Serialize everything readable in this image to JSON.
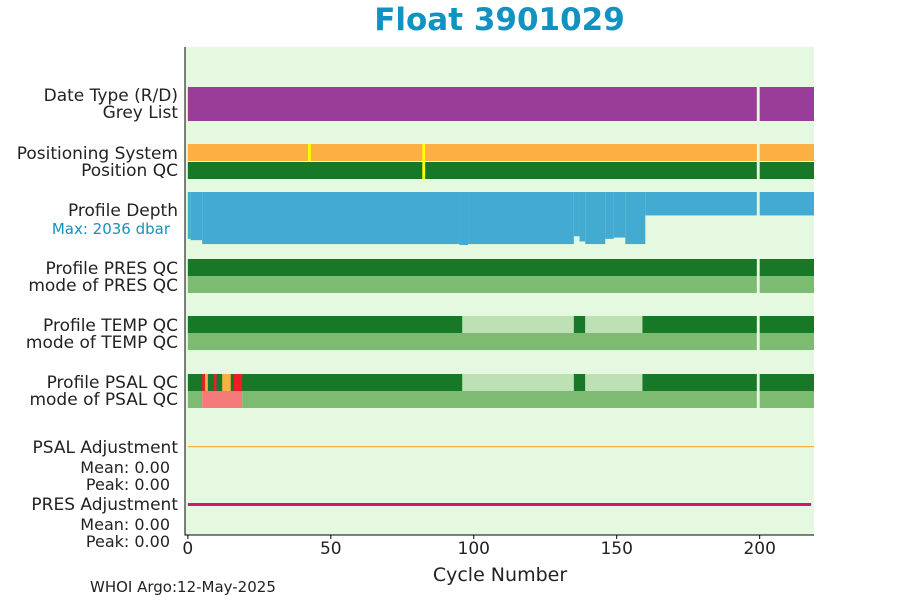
{
  "title": "Float 3901029",
  "footer": "WHOI Argo:12-May-2025",
  "colors": {
    "background": "#e5f8e0",
    "purple": "#9a3d98",
    "orange": "#fcaf42",
    "yellow": "#ffff00",
    "dark_green": "#177827",
    "mid_green": "#7dba72",
    "pale_green": "#bde0b4",
    "blue": "#43abd1",
    "red": "#ee1d25",
    "pink": "#f57a7a",
    "magenta": "#d4176d",
    "title_blue": "#1192c0"
  },
  "rows": [
    {
      "id": "date-type",
      "labels": [
        "Date Type (R/D)",
        "Grey List"
      ]
    },
    {
      "id": "positioning",
      "labels": [
        "Positioning System",
        "Position QC"
      ]
    },
    {
      "id": "profile-depth",
      "labels": [
        "Profile Depth"
      ],
      "extra": "Max: 2036 dbar"
    },
    {
      "id": "pres-qc",
      "labels": [
        "Profile PRES QC",
        "mode of PRES QC"
      ]
    },
    {
      "id": "temp-qc",
      "labels": [
        "Profile TEMP QC",
        "mode of TEMP QC"
      ]
    },
    {
      "id": "psal-qc",
      "labels": [
        "Profile PSAL QC",
        "mode of PSAL QC"
      ]
    },
    {
      "id": "psal-adj",
      "labels": [
        "PSAL Adjustment",
        "Mean: 0.00",
        "Peak: 0.00"
      ]
    },
    {
      "id": "pres-adj",
      "labels": [
        "PRES Adjustment",
        "Mean: 0.00",
        "Peak: 0.00"
      ]
    }
  ],
  "chart_data": {
    "type": "bar",
    "title": "Float 3901029",
    "xlabel": "Cycle Number",
    "xlim": [
      -1,
      219
    ],
    "xticks": [
      0,
      50,
      100,
      150,
      200
    ],
    "gap_cycles": [
      199
    ],
    "date_type": [
      {
        "from": 0,
        "to": 219,
        "color": "purple"
      }
    ],
    "positioning_system": [
      {
        "from": 0,
        "to": 219,
        "color": "orange"
      },
      {
        "from": 42,
        "to": 43,
        "color": "yellow"
      },
      {
        "from": 82,
        "to": 83,
        "color": "yellow"
      }
    ],
    "position_qc": [
      {
        "from": 0,
        "to": 219,
        "color": "dark_green"
      },
      {
        "from": 82,
        "to": 83,
        "color": "yellow"
      }
    ],
    "profile_depth_max_dbar": 2036,
    "profile_depth": [
      {
        "from": 0,
        "to": 1,
        "depth": 1800
      },
      {
        "from": 1,
        "to": 5,
        "depth": 1850
      },
      {
        "from": 5,
        "to": 95,
        "depth": 2000
      },
      {
        "from": 95,
        "to": 98,
        "depth": 2036
      },
      {
        "from": 98,
        "to": 135,
        "depth": 2000
      },
      {
        "from": 135,
        "to": 137,
        "depth": 1700
      },
      {
        "from": 137,
        "to": 139,
        "depth": 1900
      },
      {
        "from": 139,
        "to": 146,
        "depth": 2000
      },
      {
        "from": 146,
        "to": 149,
        "depth": 1800
      },
      {
        "from": 149,
        "to": 153,
        "depth": 1750
      },
      {
        "from": 153,
        "to": 160,
        "depth": 2000
      },
      {
        "from": 160,
        "to": 219,
        "depth": 900
      }
    ],
    "pres_qc": [
      {
        "from": 0,
        "to": 219,
        "color": "dark_green"
      }
    ],
    "mode_pres_qc": [
      {
        "from": 0,
        "to": 219,
        "color": "mid_green"
      }
    ],
    "temp_qc": [
      {
        "from": 0,
        "to": 96,
        "color": "dark_green"
      },
      {
        "from": 96,
        "to": 135,
        "color": "pale_green"
      },
      {
        "from": 135,
        "to": 139,
        "color": "dark_green"
      },
      {
        "from": 139,
        "to": 159,
        "color": "pale_green"
      },
      {
        "from": 159,
        "to": 219,
        "color": "dark_green"
      }
    ],
    "mode_temp_qc": [
      {
        "from": 0,
        "to": 219,
        "color": "mid_green"
      }
    ],
    "psal_qc": [
      {
        "from": 0,
        "to": 96,
        "color": "dark_green"
      },
      {
        "from": 5,
        "to": 6,
        "color": "red"
      },
      {
        "from": 6,
        "to": 7,
        "color": "orange"
      },
      {
        "from": 9,
        "to": 10,
        "color": "red"
      },
      {
        "from": 12,
        "to": 15,
        "color": "orange"
      },
      {
        "from": 16,
        "to": 19,
        "color": "red"
      },
      {
        "from": 96,
        "to": 135,
        "color": "pale_green"
      },
      {
        "from": 135,
        "to": 139,
        "color": "dark_green"
      },
      {
        "from": 139,
        "to": 159,
        "color": "pale_green"
      },
      {
        "from": 159,
        "to": 219,
        "color": "dark_green"
      }
    ],
    "mode_psal_qc": [
      {
        "from": 0,
        "to": 5,
        "color": "mid_green"
      },
      {
        "from": 5,
        "to": 19,
        "color": "pink"
      },
      {
        "from": 19,
        "to": 219,
        "color": "mid_green"
      }
    ],
    "psal_adjustment": [
      {
        "from": 0,
        "to": 219,
        "value": 0.0
      }
    ],
    "pres_adjustment": [
      {
        "from": 0,
        "to": 218,
        "value": 0.0
      }
    ]
  }
}
